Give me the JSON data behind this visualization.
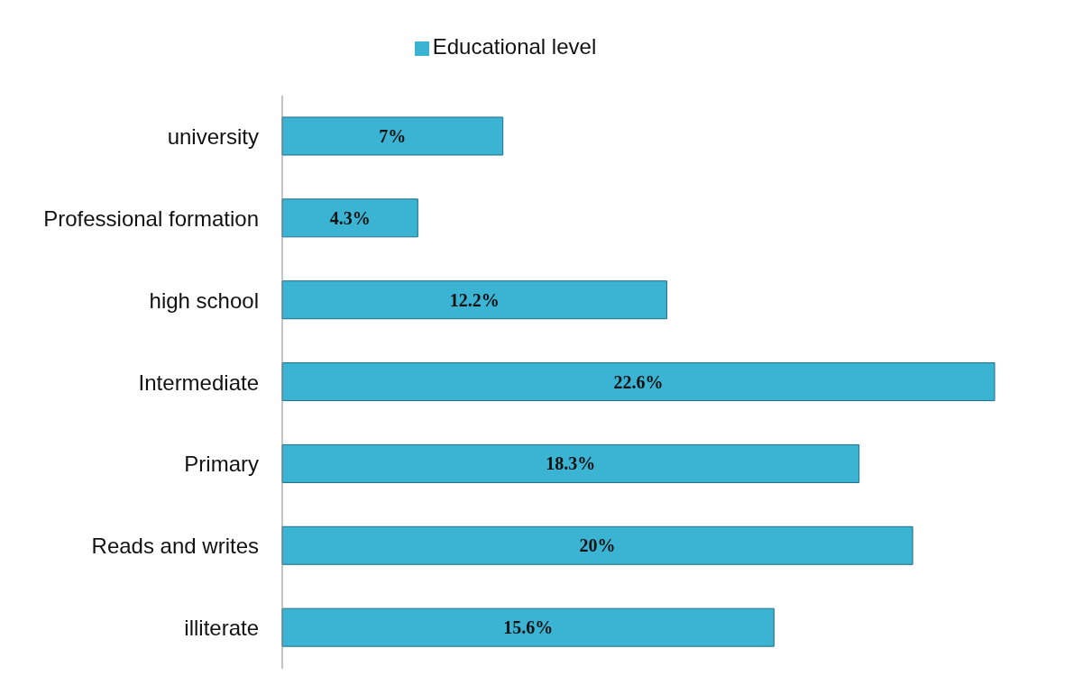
{
  "chart_data": {
    "type": "bar",
    "orientation": "horizontal",
    "categories": [
      "university",
      "Professional formation",
      "high school",
      "Intermediate",
      "Primary",
      "Reads and writes",
      "illiterate"
    ],
    "series": [
      {
        "name": "Educational level",
        "color": "#3bb3d3",
        "values": [
          7,
          4.3,
          12.2,
          22.6,
          18.3,
          20,
          15.6
        ],
        "value_labels": [
          "7%",
          "4.3%",
          "12.2%",
          "22.6%",
          "18.3%",
          "20%",
          "15.6%"
        ]
      }
    ],
    "legend": "top",
    "grid": false
  }
}
